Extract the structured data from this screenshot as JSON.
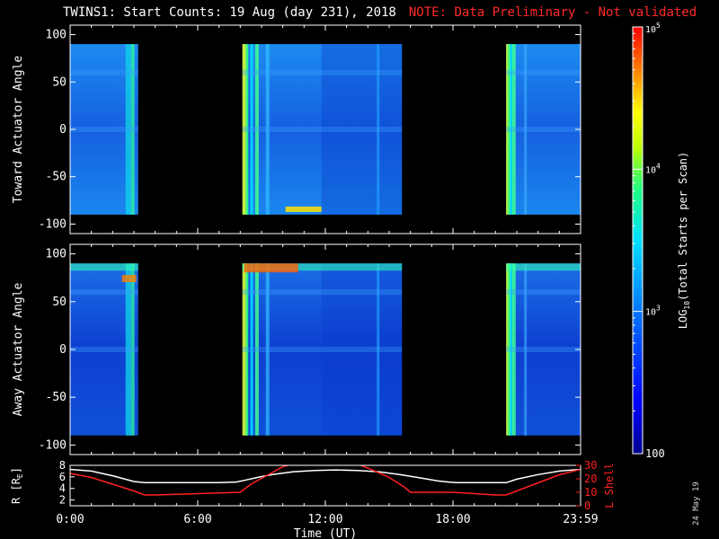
{
  "header": {
    "title": "TWINS1: Start Counts: 19 Aug (day 231), 2018",
    "note": "NOTE: Data Preliminary - Not validated"
  },
  "stamp": "24 May 19",
  "colors": {
    "background": "#000000",
    "note": "#ff2a2a",
    "r_line": "#ffffff",
    "lshell_line": "#ff2020"
  },
  "chart_data": [
    {
      "type": "heatmap",
      "panel": "toward",
      "ylabel": "Toward Actuator Angle",
      "yticks": [
        "100",
        "50",
        "0",
        "-50",
        "-100"
      ],
      "ylim": [
        -110,
        110
      ],
      "angle_range": [
        -90,
        90
      ],
      "xlim_hours": [
        0,
        24
      ],
      "data_intervals_hours": [
        [
          0.0,
          3.2
        ],
        [
          8.1,
          15.6
        ],
        [
          20.5,
          24.0
        ]
      ],
      "colorbar_scale": "log"
    },
    {
      "type": "heatmap",
      "panel": "away",
      "ylabel": "Away Actuator Angle",
      "yticks": [
        "100",
        "50",
        "0",
        "-50",
        "-100"
      ],
      "ylim": [
        -110,
        110
      ],
      "angle_range": [
        -90,
        90
      ],
      "xlim_hours": [
        0,
        24
      ],
      "data_intervals_hours": [
        [
          0.0,
          3.2
        ],
        [
          8.1,
          15.6
        ],
        [
          20.5,
          24.0
        ]
      ],
      "colorbar_scale": "log"
    },
    {
      "type": "line",
      "panel": "orbit",
      "xlabel": "Time (UT)",
      "xticks": [
        "0:00",
        "6:00",
        "12:00",
        "18:00",
        "23:59"
      ],
      "xtick_hours": [
        0,
        6,
        12,
        18,
        24
      ],
      "ylabel_left": "R [R",
      "ylabel_left_sub": "E",
      "ylabel_left_tail": "]",
      "yticks_left": [
        "8",
        "6",
        "4",
        "2"
      ],
      "ylim_left": [
        1,
        8
      ],
      "ylabel_right": "L Shell",
      "yticks_right": [
        "30",
        "20",
        "10",
        "0"
      ],
      "ylim_right": [
        0,
        30
      ],
      "series": [
        {
          "name": "R [RE]",
          "axis": "left",
          "x": [
            0,
            1,
            2,
            3,
            3.5,
            4,
            6,
            7,
            7.8,
            8.2,
            8.8,
            9.5,
            10.5,
            11.5,
            12.5,
            13.5,
            14.5,
            15.5,
            16.5,
            17.3,
            17.8,
            18.2,
            19,
            20,
            20.5,
            21,
            22,
            23,
            24
          ],
          "y": [
            7.3,
            7.0,
            6.2,
            5.2,
            5.0,
            5.0,
            5.0,
            5.0,
            5.1,
            5.4,
            5.9,
            6.4,
            6.9,
            7.1,
            7.2,
            7.1,
            6.9,
            6.4,
            5.8,
            5.3,
            5.1,
            5.0,
            5.0,
            5.0,
            5.0,
            5.6,
            6.4,
            7.0,
            7.3
          ]
        },
        {
          "name": "L Shell",
          "axis": "right",
          "x": [
            0,
            1,
            2,
            3,
            3.5,
            4,
            6,
            8,
            8.5,
            9.2,
            10,
            10.5,
            13.5,
            14,
            15,
            15.7,
            16,
            18,
            20,
            20.5,
            21,
            22,
            23,
            24
          ],
          "y": [
            24,
            21,
            16,
            11,
            8,
            8,
            9,
            10,
            16,
            22,
            29,
            31,
            31,
            28,
            21,
            14,
            10,
            10,
            8,
            8,
            11,
            17,
            23,
            27
          ]
        }
      ]
    },
    {
      "type": "colorbar",
      "label": "LOG",
      "label_sub": "10",
      "label_tail": "(Total Starts per Scan)",
      "ticks": [
        {
          "base": "10",
          "exp": "5"
        },
        {
          "base": "10",
          "exp": "4"
        },
        {
          "base": "10",
          "exp": "3"
        },
        {
          "base": "100",
          "exp": ""
        }
      ],
      "range_log10": [
        2,
        5
      ]
    }
  ]
}
